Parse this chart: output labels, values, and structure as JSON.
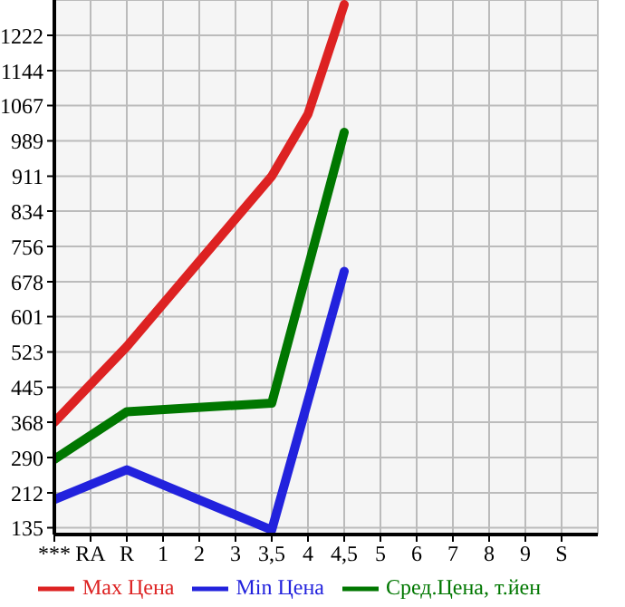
{
  "chart_data": {
    "type": "line",
    "categories": [
      "***",
      "RA",
      "R",
      "1",
      "2",
      "3",
      "3,5",
      "4",
      "4,5",
      "5",
      "6",
      "7",
      "8",
      "9",
      "S"
    ],
    "series": [
      {
        "name": "Max Цена",
        "color": "#dd2222",
        "values": [
          368,
          null,
          535,
          null,
          null,
          null,
          911,
          1048,
          1290,
          null,
          null,
          null,
          null,
          null,
          null
        ]
      },
      {
        "name": "Min Цена",
        "color": "#2222dd",
        "values": [
          197,
          null,
          263,
          null,
          null,
          null,
          130,
          null,
          701,
          null,
          null,
          null,
          null,
          null,
          null
        ]
      },
      {
        "name": "Сред.Цена, т.йен",
        "color": "#007700",
        "values": [
          286,
          null,
          391,
          null,
          null,
          null,
          410,
          null,
          1008,
          null,
          null,
          null,
          null,
          null,
          null
        ]
      }
    ],
    "ylim": [
      120,
      1300
    ],
    "yticks": [
      135,
      212,
      290,
      368,
      445,
      523,
      601,
      678,
      756,
      834,
      911,
      989,
      1067,
      1144,
      1222
    ],
    "grid": true,
    "legend": "bottom",
    "marker": "none",
    "line_style": "solid"
  }
}
